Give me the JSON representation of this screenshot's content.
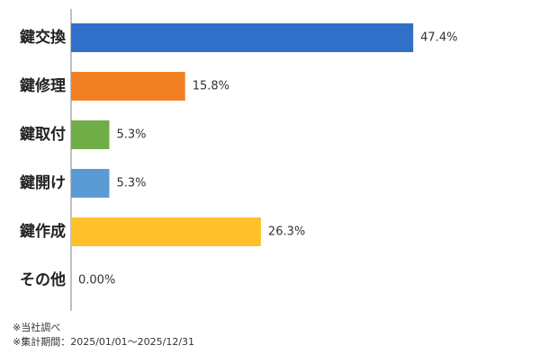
{
  "chart_data": {
    "type": "bar",
    "orientation": "horizontal",
    "categories": [
      "鍵交換",
      "鍵修理",
      "鍵取付",
      "鍵開け",
      "鍵作成",
      "その他"
    ],
    "values": [
      47.4,
      15.8,
      5.3,
      5.3,
      26.3,
      0.0
    ],
    "value_labels": [
      "47.4%",
      "15.8%",
      "5.3%",
      "5.3%",
      "26.3%",
      "0.00%"
    ],
    "colors": [
      "#3070C8",
      "#F07F22",
      "#70AD47",
      "#5B9BD5",
      "#FFC02A",
      "#A5A5A5"
    ],
    "xlim": [
      0,
      50
    ],
    "grid": false,
    "legend": "none"
  },
  "footnotes": {
    "source": "※当社調べ",
    "period": "※集計期間：2025/01/01～2025/12/31"
  }
}
